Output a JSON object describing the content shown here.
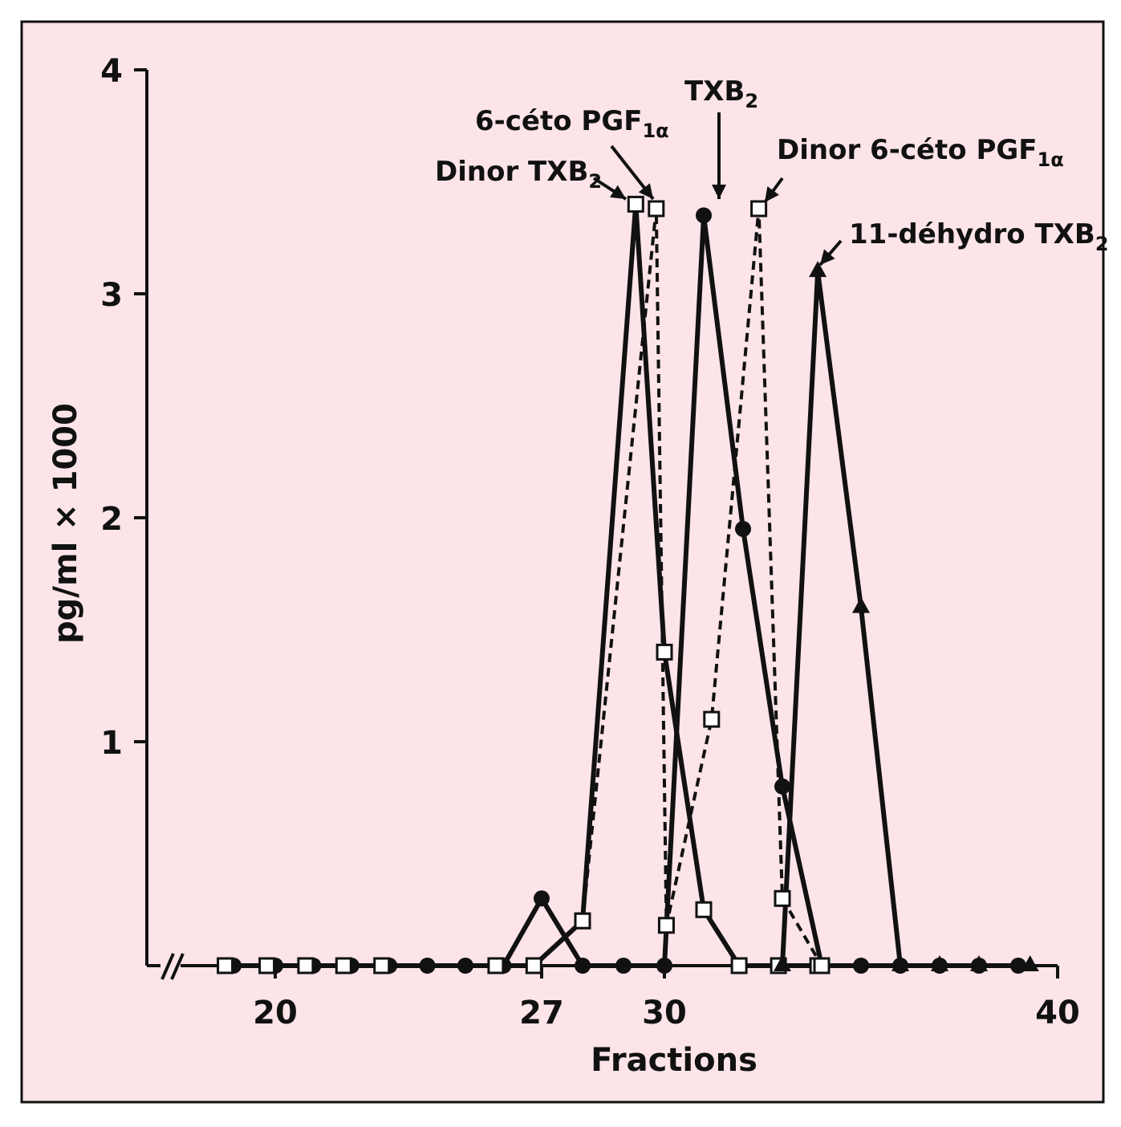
{
  "chart_data": {
    "type": "line",
    "title": "",
    "xlabel": "Fractions",
    "ylabel": "pg/ml × 1000",
    "xlim": [
      17,
      40
    ],
    "ylim": [
      0,
      4
    ],
    "x_axis_break": true,
    "x_ticks": [
      20,
      27,
      30,
      40
    ],
    "y_ticks": [
      1,
      2,
      3,
      4
    ],
    "grid": false,
    "legend": "none",
    "background_color": "#fce4e8",
    "series": [
      {
        "marker": "filled-circle",
        "line": "solid",
        "points": [
          [
            19,
            0
          ],
          [
            20,
            0
          ],
          [
            21,
            0
          ],
          [
            22,
            0
          ],
          [
            23,
            0
          ],
          [
            24,
            0
          ],
          [
            25,
            0
          ],
          [
            26,
            0
          ],
          [
            27,
            0.3
          ],
          [
            28,
            0
          ],
          [
            29,
            0
          ],
          [
            30,
            0
          ],
          [
            31,
            3.35
          ],
          [
            32,
            1.95
          ],
          [
            33,
            0.8
          ],
          [
            34,
            0
          ],
          [
            35,
            0
          ],
          [
            36,
            0
          ],
          [
            37,
            0
          ],
          [
            38,
            0
          ],
          [
            39,
            0
          ]
        ]
      },
      {
        "marker": "open-square",
        "line": "solid",
        "points": [
          [
            18.8,
            0
          ],
          [
            19.8,
            0
          ],
          [
            20.8,
            0
          ],
          [
            21.8,
            0
          ],
          [
            22.8,
            0
          ],
          [
            25.8,
            0
          ],
          [
            26.8,
            0
          ],
          [
            28.0,
            0.2
          ],
          [
            29.3,
            3.4
          ],
          [
            30.0,
            1.4
          ],
          [
            31.0,
            0.25
          ],
          [
            31.9,
            0
          ],
          [
            32.9,
            0
          ],
          [
            33.9,
            0
          ]
        ]
      },
      {
        "marker": "open-square",
        "line": "dashed",
        "points": [
          [
            28.0,
            0.2
          ],
          [
            29.8,
            3.38
          ],
          [
            30.05,
            0.18
          ],
          [
            31.2,
            1.1
          ],
          [
            32.4,
            3.38
          ],
          [
            33.0,
            0.3
          ],
          [
            34.0,
            0
          ]
        ]
      },
      {
        "marker": "filled-triangle",
        "line": "solid",
        "points": [
          [
            33.0,
            0
          ],
          [
            33.9,
            3.1
          ],
          [
            35.0,
            1.6
          ],
          [
            36.0,
            0
          ],
          [
            37.0,
            0
          ],
          [
            38.0,
            0
          ],
          [
            39.3,
            0
          ]
        ]
      }
    ],
    "annotations": [
      {
        "text": "6-céto PGF",
        "sub": "1α",
        "points_to": [
          29.8,
          3.4
        ]
      },
      {
        "text": "Dinor TXB",
        "sub": "2",
        "points_to": [
          29.3,
          3.4
        ]
      },
      {
        "text": "TXB",
        "sub": "2",
        "points_to": [
          31,
          3.4
        ]
      },
      {
        "text": "Dinor 6-céto PGF",
        "sub": "1α",
        "points_to": [
          32.4,
          3.4
        ]
      },
      {
        "text": "11-déhydro TXB",
        "sub": "2",
        "points_to": [
          33.9,
          3.12
        ]
      }
    ]
  }
}
